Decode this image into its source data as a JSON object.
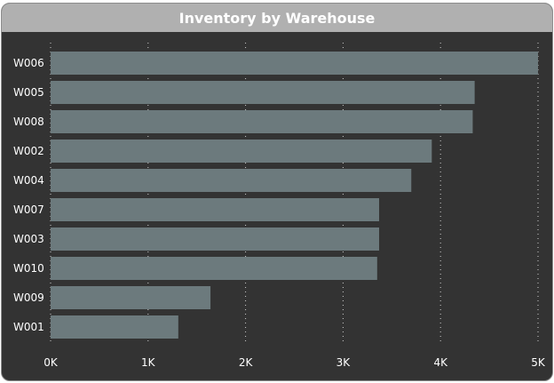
{
  "chart_data": {
    "type": "bar",
    "orientation": "horizontal",
    "title": "Inventory by Warehouse",
    "xlabel": "",
    "ylabel": "",
    "categories": [
      "W006",
      "W005",
      "W008",
      "W002",
      "W004",
      "W007",
      "W003",
      "W010",
      "W009",
      "W001"
    ],
    "values": [
      5000,
      4350,
      4330,
      3910,
      3700,
      3370,
      3370,
      3350,
      1640,
      1310
    ],
    "xlim": [
      0,
      5000
    ],
    "xticks": [
      0,
      1000,
      2000,
      3000,
      4000,
      5000
    ],
    "xtick_labels": [
      "0K",
      "1K",
      "2K",
      "3K",
      "4K",
      "5K"
    ],
    "grid": "vertical dotted",
    "legend": "none",
    "colors": {
      "bar": "#6c7a7d",
      "background": "#333333",
      "title_bar": "#b0b0b0",
      "text": "#ffffff",
      "grid": "#d0d0d0"
    }
  }
}
